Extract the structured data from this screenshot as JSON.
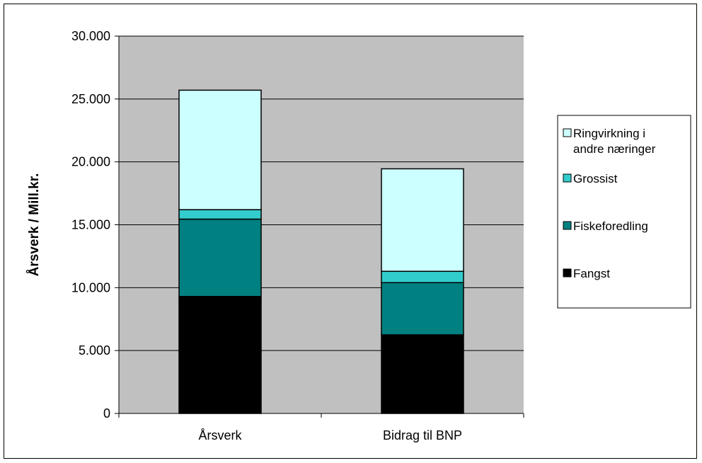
{
  "chart_data": {
    "type": "bar",
    "stacked": true,
    "title": "",
    "xlabel": "",
    "ylabel": "Årsverk / Mill.kr.",
    "ylim": [
      0,
      30000
    ],
    "yticks": [
      "0",
      "5.000",
      "10.000",
      "15.000",
      "20.000",
      "25.000",
      "30.000"
    ],
    "categories": [
      "Årsverk",
      "Bidrag til BNP"
    ],
    "series": [
      {
        "name": "Fangst",
        "color": "#000000",
        "values": [
          9300,
          6250
        ]
      },
      {
        "name": "Fiskeforedling",
        "color": "#008080",
        "values": [
          6150,
          4150
        ]
      },
      {
        "name": "Grossist",
        "color": "#33CCCC",
        "values": [
          750,
          900
        ]
      },
      {
        "name": "Ringvirkning i andre næringer",
        "color": "#CCFFFF",
        "values": [
          9500,
          8150
        ]
      }
    ],
    "legend": {
      "placement": "right",
      "items": [
        {
          "lines": [
            "Ringvirkning i",
            "andre næringer"
          ],
          "color": "#CCFFFF"
        },
        {
          "lines": [
            "Grossist"
          ],
          "color": "#33CCCC"
        },
        {
          "lines": [
            "Fiskeforedling"
          ],
          "color": "#008080"
        },
        {
          "lines": [
            "Fangst"
          ],
          "color": "#000000"
        }
      ]
    },
    "grid": true,
    "plot_background": "#C0C0C0"
  }
}
